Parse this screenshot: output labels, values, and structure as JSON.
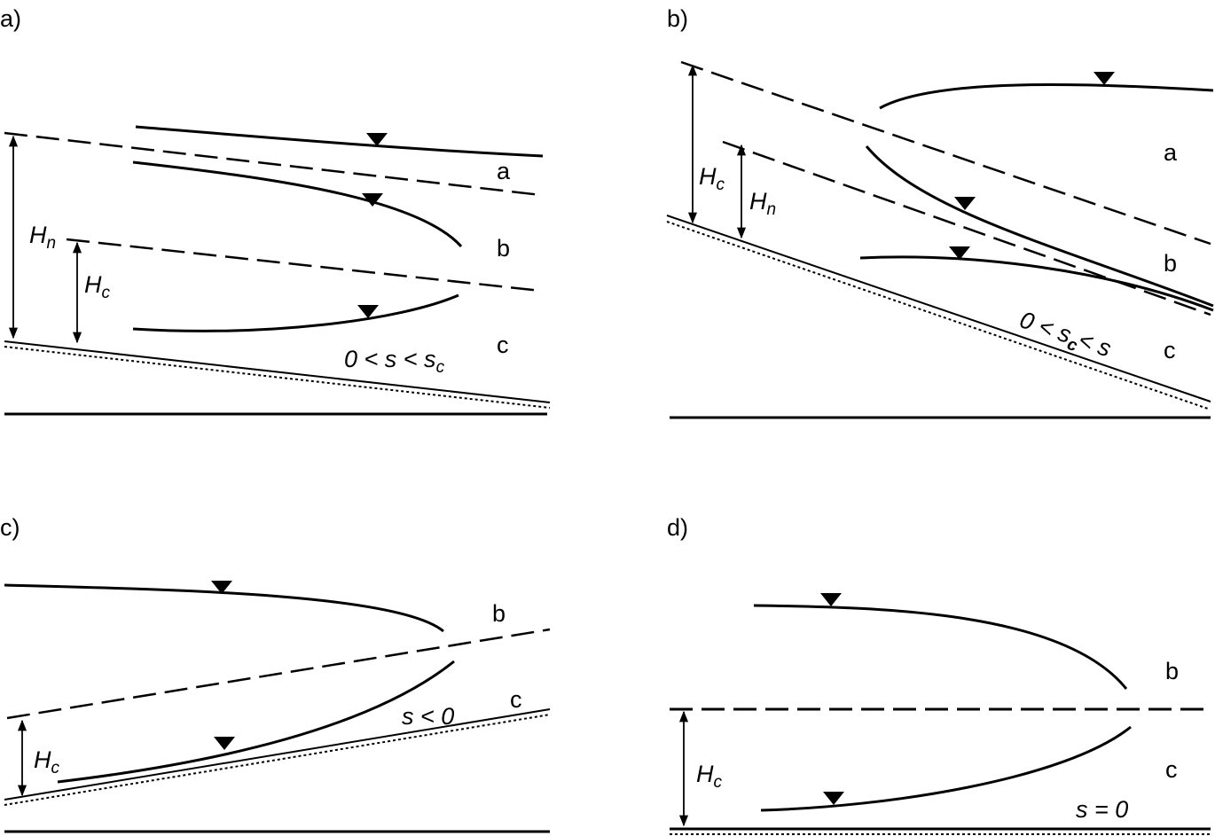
{
  "panels": [
    {
      "label": "a)",
      "zones": [
        "a",
        "b",
        "c"
      ],
      "depths": [
        [
          "H",
          "n"
        ],
        [
          "H",
          "c"
        ]
      ],
      "slope": [
        "0 < s < s",
        "c"
      ]
    },
    {
      "label": "b)",
      "zones": [
        "a",
        "b",
        "c"
      ],
      "depths": [
        [
          "H",
          "c"
        ],
        [
          "H",
          "n"
        ]
      ],
      "slope": [
        "0 < s",
        "c",
        "< s"
      ]
    },
    {
      "label": "c)",
      "zones": [
        "b",
        "c"
      ],
      "depths": [
        [
          "H",
          "c"
        ]
      ],
      "slope": [
        "s < 0"
      ]
    },
    {
      "label": "d)",
      "zones": [
        "b",
        "c"
      ],
      "depths": [
        [
          "H",
          "c"
        ]
      ],
      "slope": [
        "s = 0"
      ]
    }
  ]
}
